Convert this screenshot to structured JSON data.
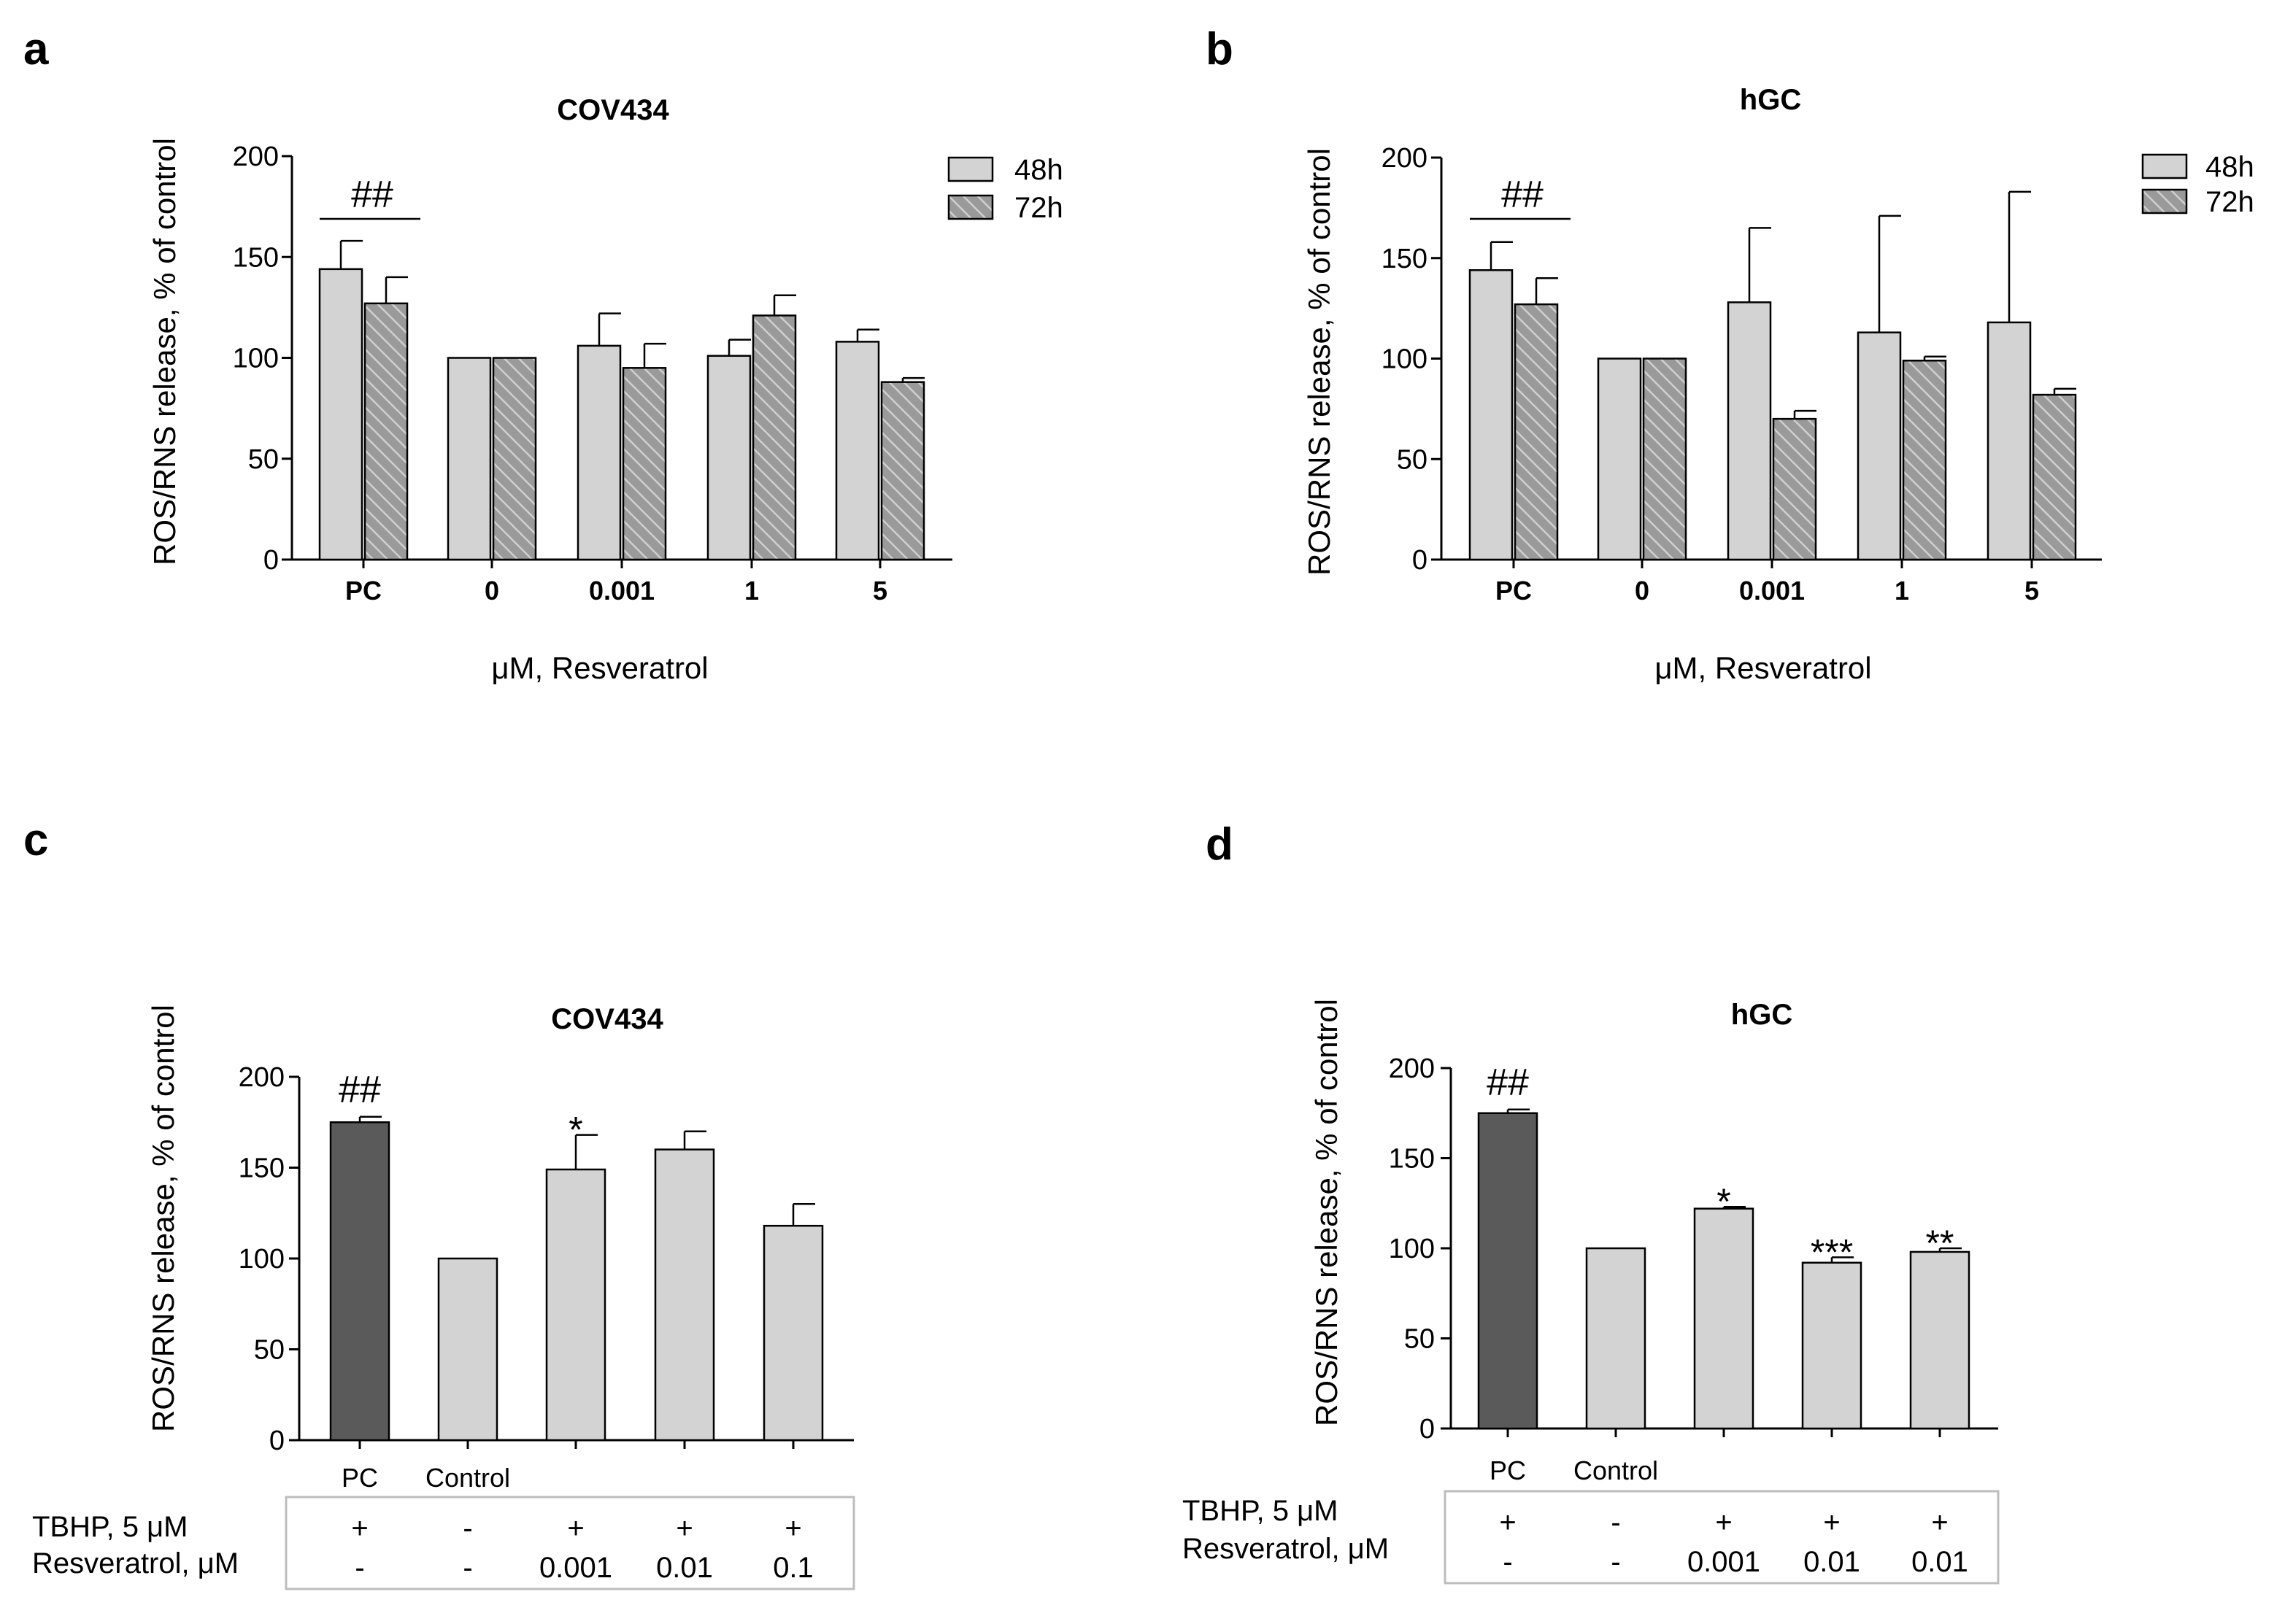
{
  "panels": [
    {
      "id": "a",
      "letter": "a",
      "chart_data": {
        "type": "bar",
        "title": "COV434",
        "xlabel": "μM, Resveratrol",
        "ylabel": "ROS/RNS release, % of control",
        "ylim": [
          0,
          200
        ],
        "yticks": [
          "0",
          "50",
          "100",
          "150",
          "200"
        ],
        "categories": [
          "PC",
          "0",
          "0.001",
          "1",
          "5"
        ],
        "series": [
          {
            "name": "48h",
            "values": [
              144,
              100,
              106,
              101,
              108
            ],
            "errors": [
              14,
              0,
              16,
              8,
              6
            ]
          },
          {
            "name": "72h",
            "values": [
              127,
              100,
              95,
              121,
              88
            ],
            "errors": [
              13,
              0,
              12,
              10,
              2
            ]
          }
        ],
        "annotations": [
          {
            "text": "##",
            "category": "PC"
          }
        ],
        "legend": "top-right"
      }
    },
    {
      "id": "b",
      "letter": "b",
      "chart_data": {
        "type": "bar",
        "title": "hGC",
        "xlabel": "μM, Resveratrol",
        "ylabel": "ROS/RNS release, % of control",
        "ylim": [
          0,
          200
        ],
        "yticks": [
          "0",
          "50",
          "100",
          "150",
          "200"
        ],
        "categories": [
          "PC",
          "0",
          "0.001",
          "1",
          "5"
        ],
        "series": [
          {
            "name": "48h",
            "values": [
              144,
              100,
              128,
              113,
              118
            ],
            "errors": [
              14,
              0,
              37,
              58,
              65
            ]
          },
          {
            "name": "72h",
            "values": [
              127,
              100,
              70,
              99,
              82
            ],
            "errors": [
              13,
              0,
              4,
              2,
              3
            ]
          }
        ],
        "annotations": [
          {
            "text": "##",
            "category": "PC"
          }
        ],
        "legend": "top-right"
      }
    },
    {
      "id": "c",
      "letter": "c",
      "chart_data": {
        "type": "bar",
        "title": "COV434",
        "ylabel": "ROS/RNS release, % of control",
        "ylim": [
          0,
          200
        ],
        "yticks": [
          "0",
          "50",
          "100",
          "150",
          "200"
        ],
        "categories": [
          "PC",
          "Control",
          "",
          "",
          ""
        ],
        "values": [
          175,
          100,
          149,
          160,
          118
        ],
        "errors": [
          3,
          0,
          19,
          10,
          12
        ],
        "bar_colors": [
          "#5a5a5a",
          "#d3d3d3",
          "#d3d3d3",
          "#d3d3d3",
          "#d3d3d3"
        ],
        "significance": [
          "##",
          "",
          "*",
          "",
          ""
        ],
        "conditions": {
          "row_labels": [
            "TBHP, 5 μM",
            "Resveratrol, μM"
          ],
          "tbhp": [
            "+",
            "-",
            "+",
            "+",
            "+"
          ],
          "resveratrol": [
            "-",
            "-",
            "0.001",
            "0.01",
            "0.1"
          ]
        }
      }
    },
    {
      "id": "d",
      "letter": "d",
      "chart_data": {
        "type": "bar",
        "title": "hGC",
        "ylabel": "ROS/RNS release, % of control",
        "ylim": [
          0,
          200
        ],
        "yticks": [
          "0",
          "50",
          "100",
          "150",
          "200"
        ],
        "categories": [
          "PC",
          "Control",
          "",
          "",
          ""
        ],
        "values": [
          175,
          100,
          122,
          92,
          98
        ],
        "errors": [
          2,
          0,
          1,
          3,
          2
        ],
        "bar_colors": [
          "#5a5a5a",
          "#d3d3d3",
          "#d3d3d3",
          "#d3d3d3",
          "#d3d3d3"
        ],
        "significance": [
          "##",
          "",
          "*",
          "***",
          "**"
        ],
        "conditions": {
          "row_labels": [
            "TBHP, 5 μM",
            "Resveratrol, μM"
          ],
          "tbhp": [
            "+",
            "-",
            "+",
            "+",
            "+"
          ],
          "resveratrol": [
            "-",
            "-",
            "0.001",
            "0.01",
            "0.01"
          ]
        }
      }
    }
  ],
  "colors": {
    "bar_48h": "#d3d3d3",
    "bar_72h": "#9a9a9a",
    "bar_pc": "#5a5a5a",
    "axis": "#000000"
  }
}
